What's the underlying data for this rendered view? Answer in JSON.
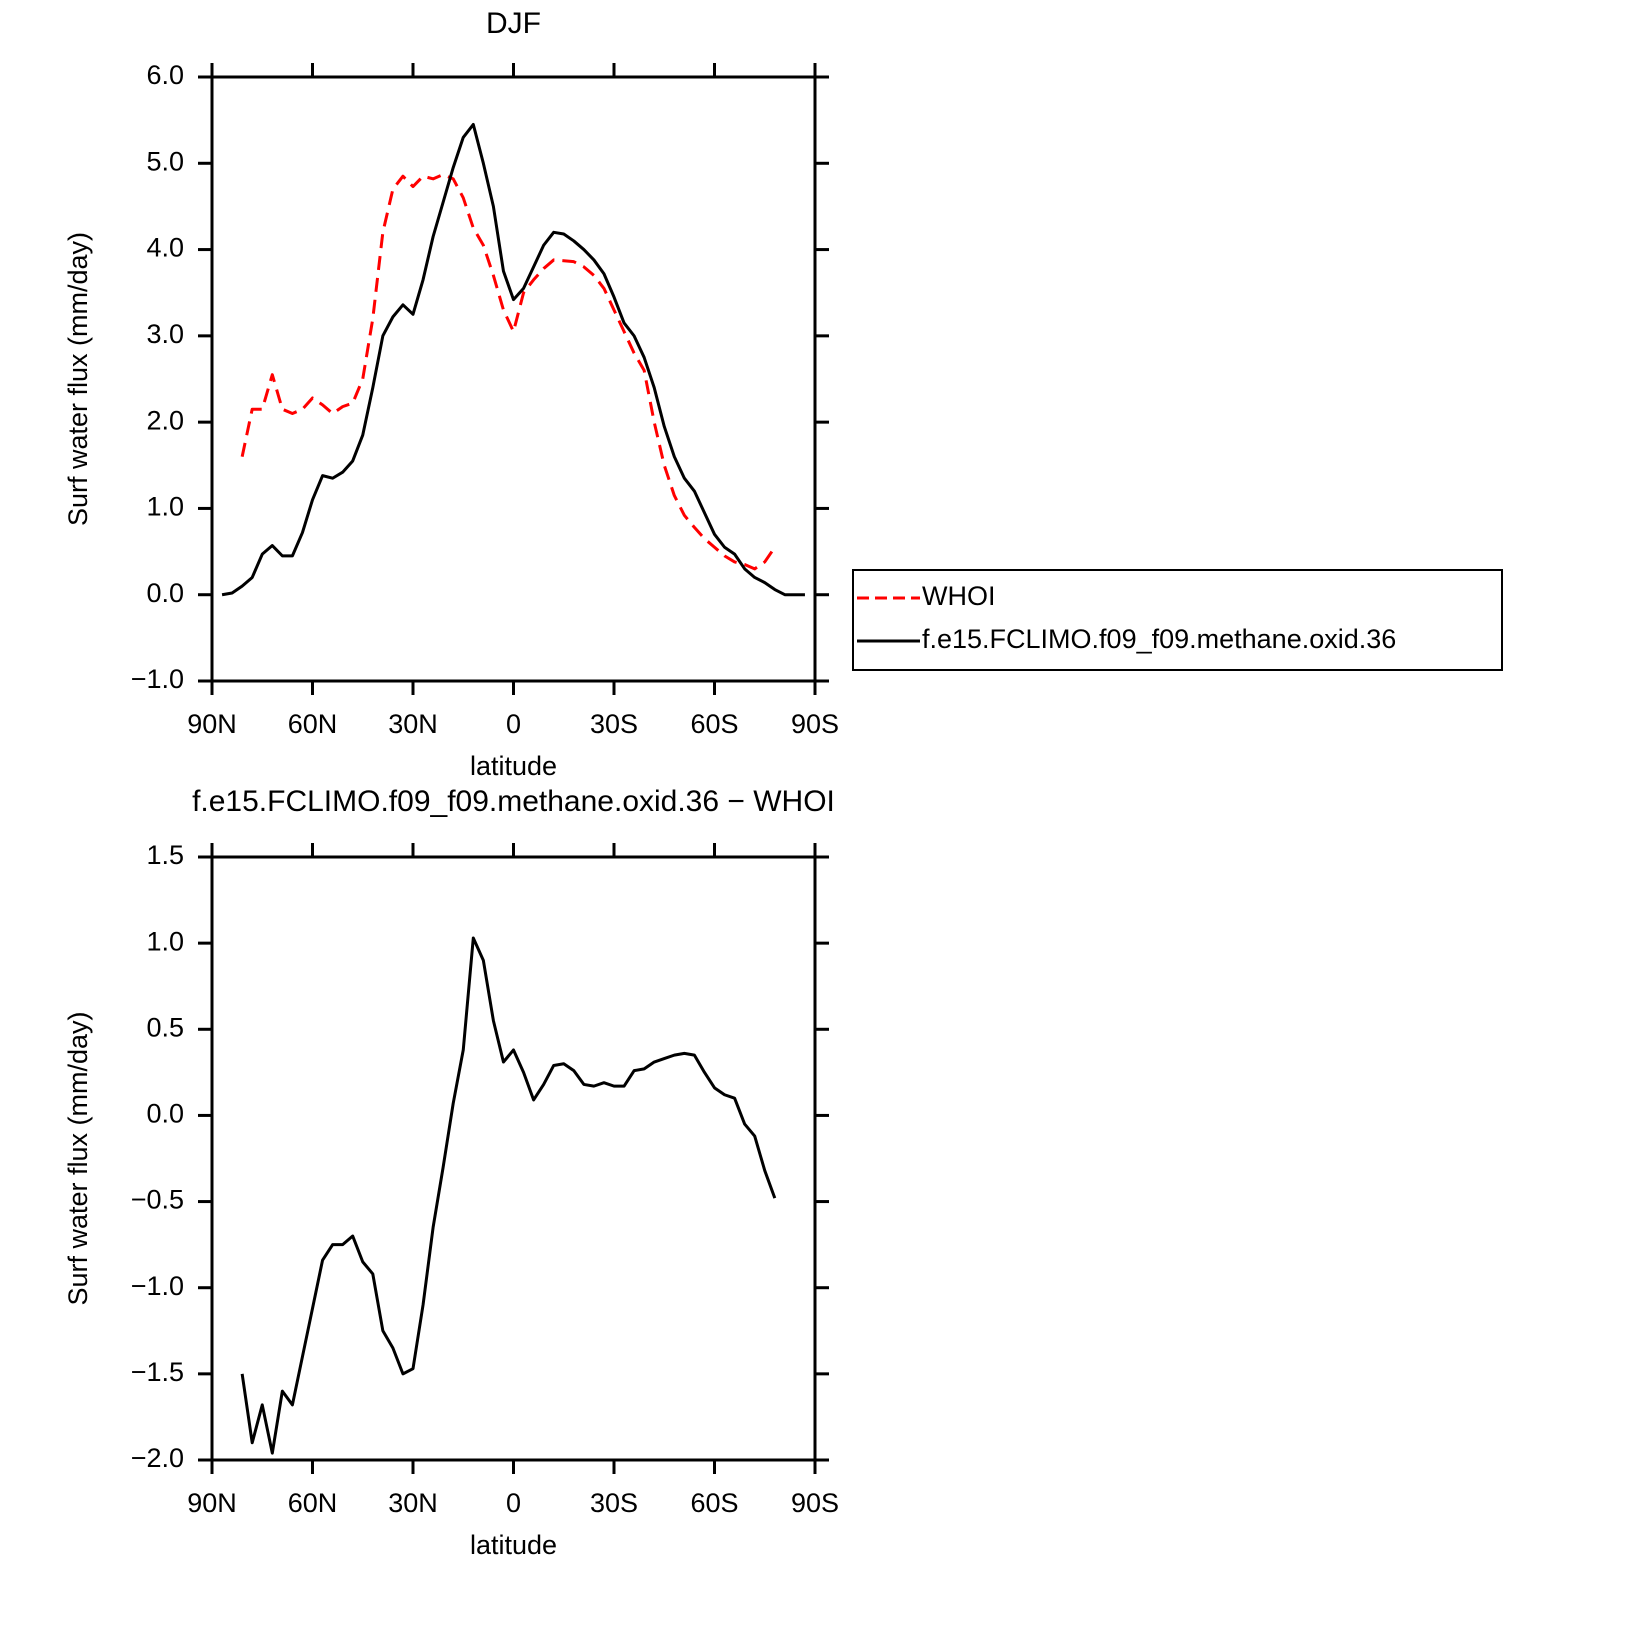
{
  "chart_data": [
    {
      "type": "line",
      "title": "DJF",
      "x_label": "latitude",
      "y_label": "Surf water flux (mm/day)",
      "x": [
        87,
        84,
        81,
        78,
        75,
        72,
        69,
        66,
        63,
        60,
        57,
        54,
        51,
        48,
        45,
        42,
        39,
        36,
        33,
        30,
        27,
        24,
        21,
        18,
        15,
        12,
        9,
        6,
        3,
        0,
        -3,
        -6,
        -9,
        -12,
        -15,
        -18,
        -21,
        -24,
        -27,
        -30,
        -33,
        -36,
        -39,
        -42,
        -45,
        -48,
        -51,
        -54,
        -57,
        -60,
        -63,
        -66,
        -69,
        -72,
        -75,
        -78,
        -81,
        -84,
        -87
      ],
      "series": [
        {
          "name": "WHOI",
          "color": "#ff0000",
          "style": "dashed",
          "values": [
            null,
            null,
            1.6,
            2.15,
            2.15,
            2.55,
            2.15,
            2.1,
            2.15,
            2.28,
            2.2,
            2.1,
            2.18,
            2.22,
            2.5,
            3.2,
            4.2,
            4.7,
            4.85,
            4.73,
            4.85,
            4.82,
            4.87,
            4.82,
            4.6,
            4.25,
            4.05,
            3.7,
            3.3,
            3.05,
            3.5,
            3.65,
            3.78,
            3.88,
            3.87,
            3.86,
            3.8,
            3.7,
            3.55,
            3.3,
            3.05,
            2.8,
            2.6,
            2.0,
            1.5,
            1.15,
            0.92,
            0.78,
            0.65,
            0.55,
            0.45,
            0.38,
            0.35,
            0.3,
            0.38,
            0.55,
            null,
            null,
            null
          ]
        },
        {
          "name": "f.e15.FCLIMO.f09_f09.methane.oxid.36",
          "color": "#000000",
          "style": "solid",
          "values": [
            0.0,
            0.02,
            0.1,
            0.2,
            0.47,
            0.57,
            0.45,
            0.45,
            0.72,
            1.1,
            1.38,
            1.35,
            1.42,
            1.55,
            1.85,
            2.4,
            3.0,
            3.22,
            3.36,
            3.25,
            3.65,
            4.15,
            4.55,
            4.95,
            5.3,
            5.45,
            5.0,
            4.5,
            3.75,
            3.42,
            3.55,
            3.8,
            4.05,
            4.2,
            4.18,
            4.1,
            4.0,
            3.88,
            3.72,
            3.45,
            3.15,
            3.0,
            2.75,
            2.4,
            1.95,
            1.6,
            1.35,
            1.2,
            0.95,
            0.7,
            0.55,
            0.47,
            0.3,
            0.2,
            0.14,
            0.06,
            0.0,
            0.0,
            0.0
          ]
        }
      ],
      "xlim": [
        90,
        -90
      ],
      "xticks": [
        {
          "value": 90,
          "label": "90N"
        },
        {
          "value": 60,
          "label": "60N"
        },
        {
          "value": 30,
          "label": "30N"
        },
        0,
        {
          "value": -30,
          "label": "30S"
        },
        {
          "value": -60,
          "label": "60S"
        },
        {
          "value": -90,
          "label": "90S"
        }
      ],
      "ylim": [
        -1,
        6
      ],
      "yticks": [
        {
          "value": -1,
          "label": "−1.0"
        },
        {
          "value": 0,
          "label": "0.0"
        },
        {
          "value": 1,
          "label": "1.0"
        },
        {
          "value": 2,
          "label": "2.0"
        },
        {
          "value": 3,
          "label": "3.0"
        },
        {
          "value": 4,
          "label": "4.0"
        },
        {
          "value": 5,
          "label": "5.0"
        },
        {
          "value": 6,
          "label": "6.0"
        }
      ],
      "legend": "right"
    },
    {
      "type": "line",
      "title": "f.e15.FCLIMO.f09_f09.methane.oxid.36 − WHOI",
      "x_label": "latitude",
      "y_label": "Surf water flux (mm/day)",
      "x": [
        81,
        78,
        75,
        72,
        69,
        66,
        63,
        60,
        57,
        54,
        51,
        48,
        45,
        42,
        39,
        36,
        33,
        30,
        27,
        24,
        21,
        18,
        15,
        12,
        9,
        6,
        3,
        0,
        -3,
        -6,
        -9,
        -12,
        -15,
        -18,
        -21,
        -24,
        -27,
        -30,
        -33,
        -36,
        -39,
        -42,
        -45,
        -48,
        -51,
        -54,
        -57,
        -60,
        -63,
        -66,
        -69,
        -72,
        -75,
        -78
      ],
      "series": [
        {
          "color": "#000000",
          "style": "solid",
          "values": [
            -1.5,
            -1.9,
            -1.68,
            -1.96,
            -1.6,
            -1.68,
            -1.4,
            -1.12,
            -0.84,
            -0.75,
            -0.75,
            -0.7,
            -0.85,
            -0.92,
            -1.25,
            -1.35,
            -1.5,
            -1.47,
            -1.1,
            -0.65,
            -0.3,
            0.07,
            0.38,
            1.03,
            0.9,
            0.55,
            0.31,
            0.38,
            0.25,
            0.09,
            0.18,
            0.29,
            0.3,
            0.26,
            0.18,
            0.17,
            0.19,
            0.17,
            0.17,
            0.26,
            0.27,
            0.31,
            0.33,
            0.35,
            0.36,
            0.35,
            0.25,
            0.16,
            0.12,
            0.1,
            -0.05,
            -0.12,
            -0.32,
            -0.48
          ]
        }
      ],
      "xlim": [
        90,
        -90
      ],
      "xticks": [
        {
          "value": 90,
          "label": "90N"
        },
        {
          "value": 60,
          "label": "60N"
        },
        {
          "value": 30,
          "label": "30N"
        },
        0,
        {
          "value": -30,
          "label": "30S"
        },
        {
          "value": -60,
          "label": "60S"
        },
        {
          "value": -90,
          "label": "90S"
        }
      ],
      "ylim": [
        -2,
        1.5
      ],
      "yticks": [
        {
          "value": -2,
          "label": "−2.0"
        },
        {
          "value": -1.5,
          "label": "−1.5"
        },
        {
          "value": -1,
          "label": "−1.0"
        },
        {
          "value": -0.5,
          "label": "−0.5"
        },
        {
          "value": 0,
          "label": "0.0"
        },
        0.5,
        {
          "value": 1,
          "label": "1.0"
        },
        1.5
      ]
    }
  ]
}
